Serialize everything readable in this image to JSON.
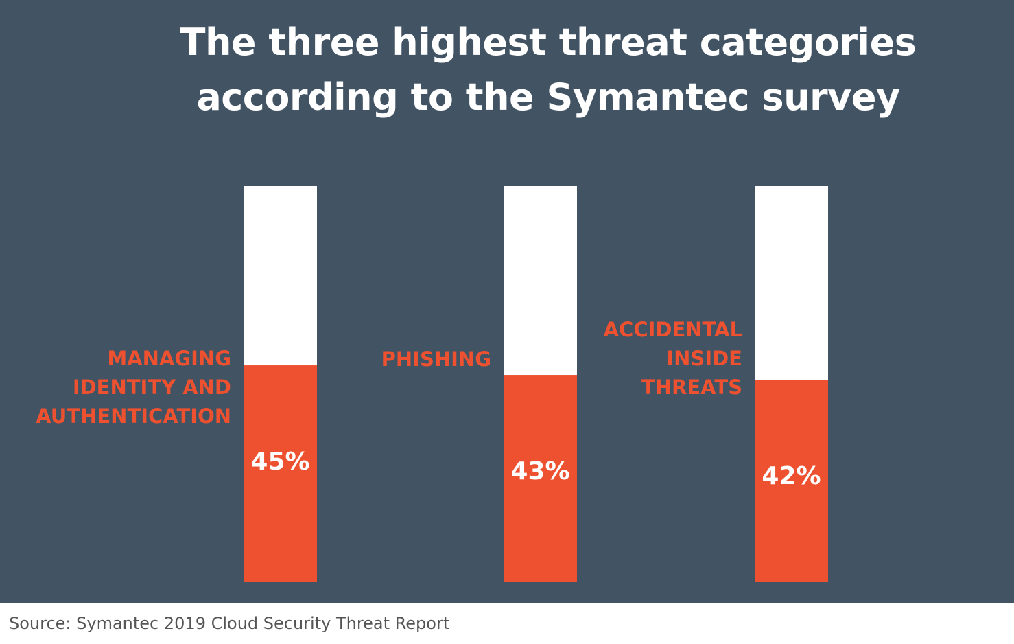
{
  "colors": {
    "background": "#425363",
    "bar_track": "#ffffff",
    "bar_fill": "#ee5130",
    "category_label": "#ee5130",
    "value_label": "#ffffff",
    "title": "#ffffff",
    "source_text": "#555555"
  },
  "chart_data": {
    "type": "bar",
    "title": "The three highest threat categories according to the Symantec survey",
    "title_lines": [
      "The three highest threat categories",
      "according to the Symantec survey"
    ],
    "categories": [
      "MANAGING IDENTITY AND AUTHENTICATION",
      "PHISHING",
      "ACCIDENTAL INSIDE THREATS"
    ],
    "category_lines": [
      [
        "MANAGING",
        "IDENTITY AND",
        "AUTHENTICATION"
      ],
      [
        "PHISHING"
      ],
      [
        "ACCIDENTAL",
        "INSIDE",
        "THREATS"
      ]
    ],
    "values": [
      45,
      43,
      42
    ],
    "value_labels": [
      "45%",
      "43%",
      "42%"
    ],
    "unit": "%",
    "ylim": [
      0,
      100
    ],
    "xlabel": "",
    "ylabel": "",
    "grid": false,
    "legend": "none"
  },
  "source": "Source: Symantec 2019 Cloud Security Threat Report"
}
